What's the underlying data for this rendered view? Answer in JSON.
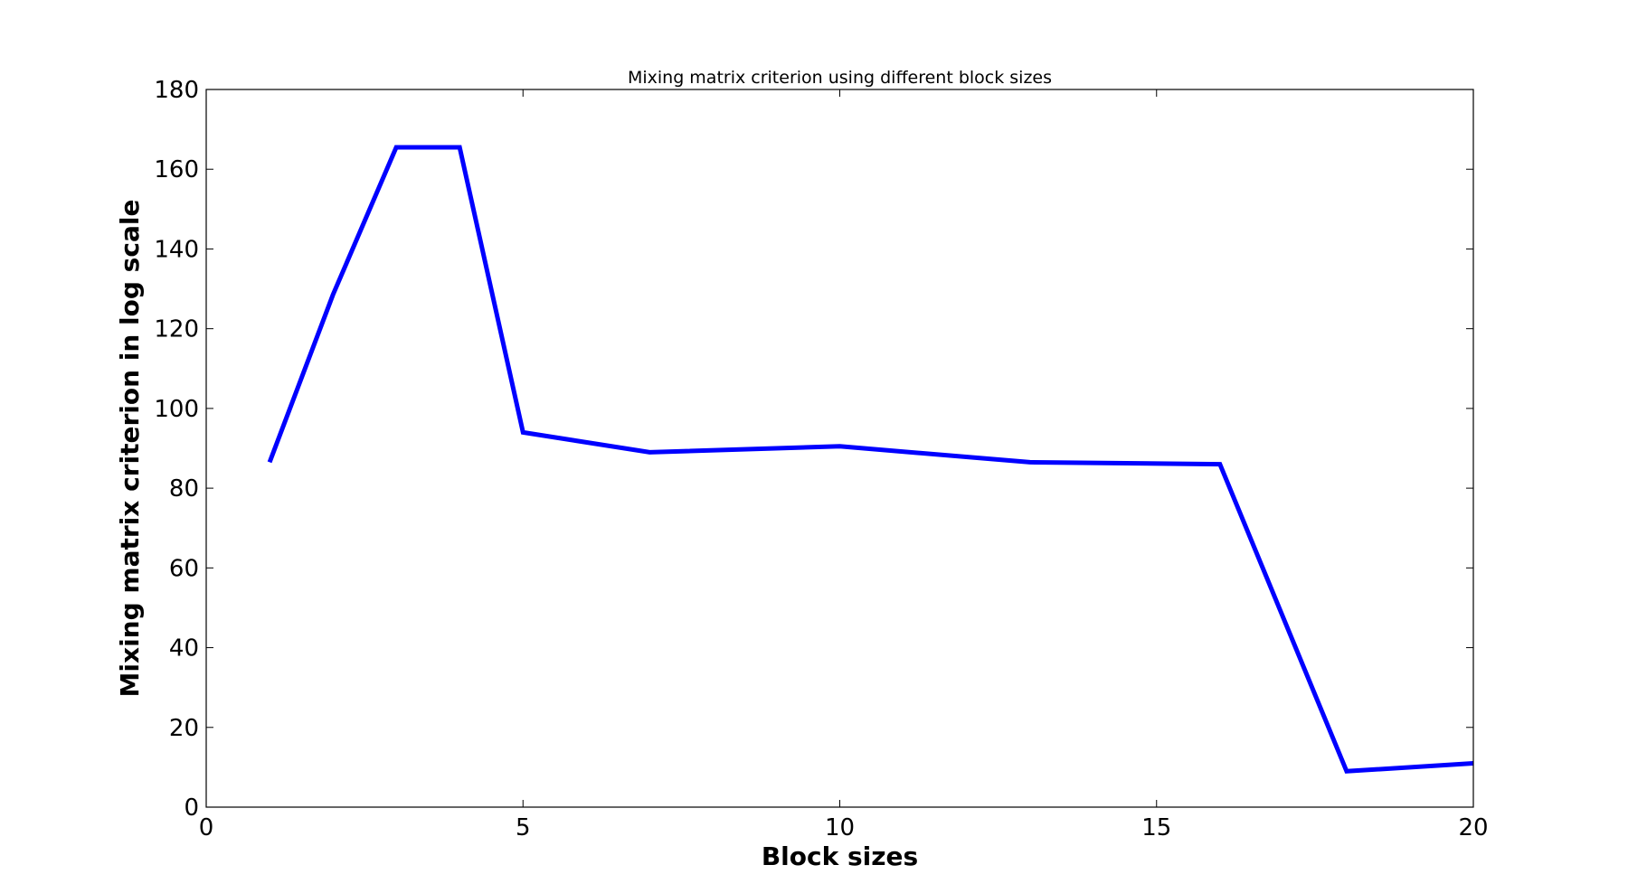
{
  "chart_data": {
    "type": "line",
    "title": "Mixing matrix criterion using different block sizes",
    "xlabel": "Block sizes",
    "ylabel": "Mixing matrix criterion in log scale",
    "xlim": [
      0,
      20
    ],
    "ylim": [
      0,
      180
    ],
    "xticks": [
      0,
      5,
      10,
      15,
      20
    ],
    "yticks": [
      0,
      20,
      40,
      60,
      80,
      100,
      120,
      140,
      160,
      180
    ],
    "xtick_labels": [
      "0",
      "5",
      "10",
      "15",
      "20"
    ],
    "ytick_labels": [
      "0",
      "20",
      "40",
      "60",
      "80",
      "100",
      "120",
      "140",
      "160",
      "180"
    ],
    "grid": false,
    "legend": false,
    "series": [
      {
        "color": "#0000ff",
        "x": [
          1,
          2,
          3,
          4,
          5,
          7,
          10,
          13,
          16,
          18,
          20
        ],
        "y": [
          86.5,
          128.5,
          165.5,
          165.5,
          94,
          89,
          90.5,
          86.5,
          86,
          9,
          11
        ]
      }
    ]
  }
}
